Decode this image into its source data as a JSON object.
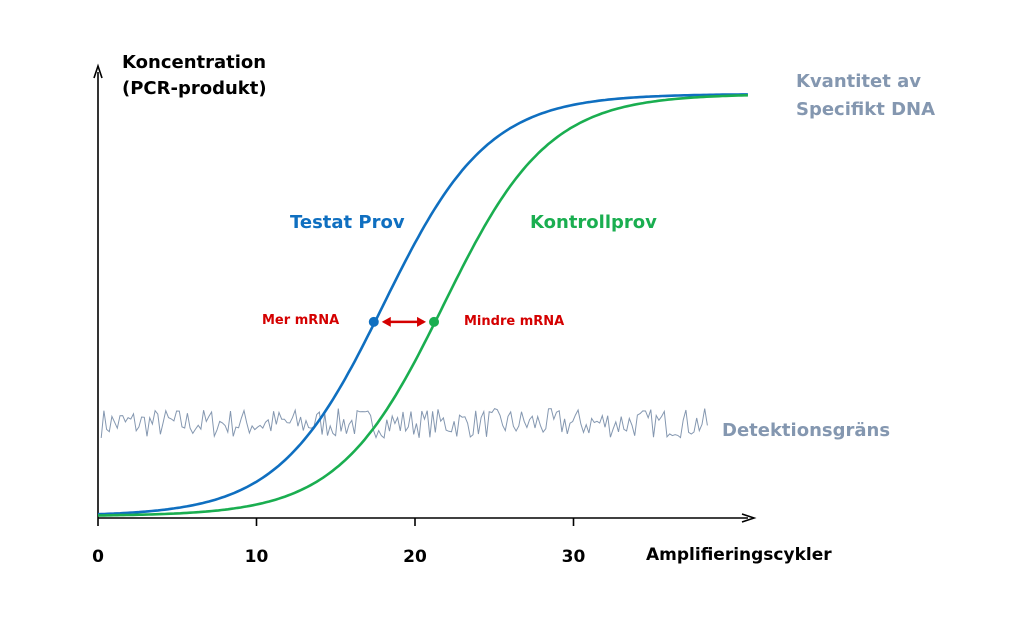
{
  "chart_data": {
    "type": "line",
    "ylabel_line1": "Koncentration",
    "ylabel_line2": "(PCR-produkt)",
    "xlabel": "Amplifieringscykler",
    "xlim": [
      0,
      41
    ],
    "ylim": [
      0,
      1
    ],
    "xticks": [
      0,
      10,
      20,
      30
    ],
    "series": [
      {
        "name": "Testat Prov",
        "midpoint": 18.0,
        "steepness": 3.3,
        "color": "#0f6fc0"
      },
      {
        "name": "Kontrollprov",
        "midpoint": 21.8,
        "steepness": 3.3,
        "color": "#1aae50"
      }
    ],
    "threshold_points": [
      {
        "series": "Testat Prov",
        "x": 17.4,
        "y": 0.46,
        "label": "Mer mRNA"
      },
      {
        "series": "Kontrollprov",
        "x": 21.2,
        "y": 0.46,
        "label": "Mindre mRNA"
      }
    ],
    "noise": {
      "label": "Detektionsgräns",
      "level": 0.22,
      "amplitude": 0.035,
      "x_end": 38.5,
      "color": "#8497b0"
    },
    "plateau_label_line1": "Kvantitet av",
    "plateau_label_line2": "Specifikt DNA",
    "arrow_color": "#d40000"
  }
}
